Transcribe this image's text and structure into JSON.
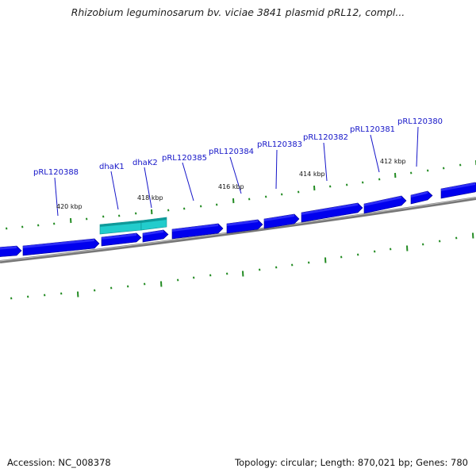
{
  "title": "Rhizobium leguminosarum bv. viciae 3841 plasmid pRL12, compl...",
  "footer": {
    "accession": "Accession: NC_008378",
    "summary": "Topology: circular; Length: 870,021 bp; Genes: 780"
  },
  "colors": {
    "gene_forward": "#0000ee",
    "gene_highlight": "#22cccc",
    "backbone": "#888888",
    "tick": "#228b22",
    "label": "#1414c8"
  },
  "scale_labels": [
    "420 kbp",
    "418 kbp",
    "416 kbp",
    "414 kbp",
    "412 kbp"
  ],
  "gene_labels": [
    "pRL120388",
    "dhaK1",
    "dhaK2",
    "pRL120385",
    "pRL120384",
    "pRL120383",
    "pRL120382",
    "pRL120381",
    "pRL120380"
  ],
  "highlighted_genes": [
    "dhaK1",
    "dhaK2"
  ]
}
